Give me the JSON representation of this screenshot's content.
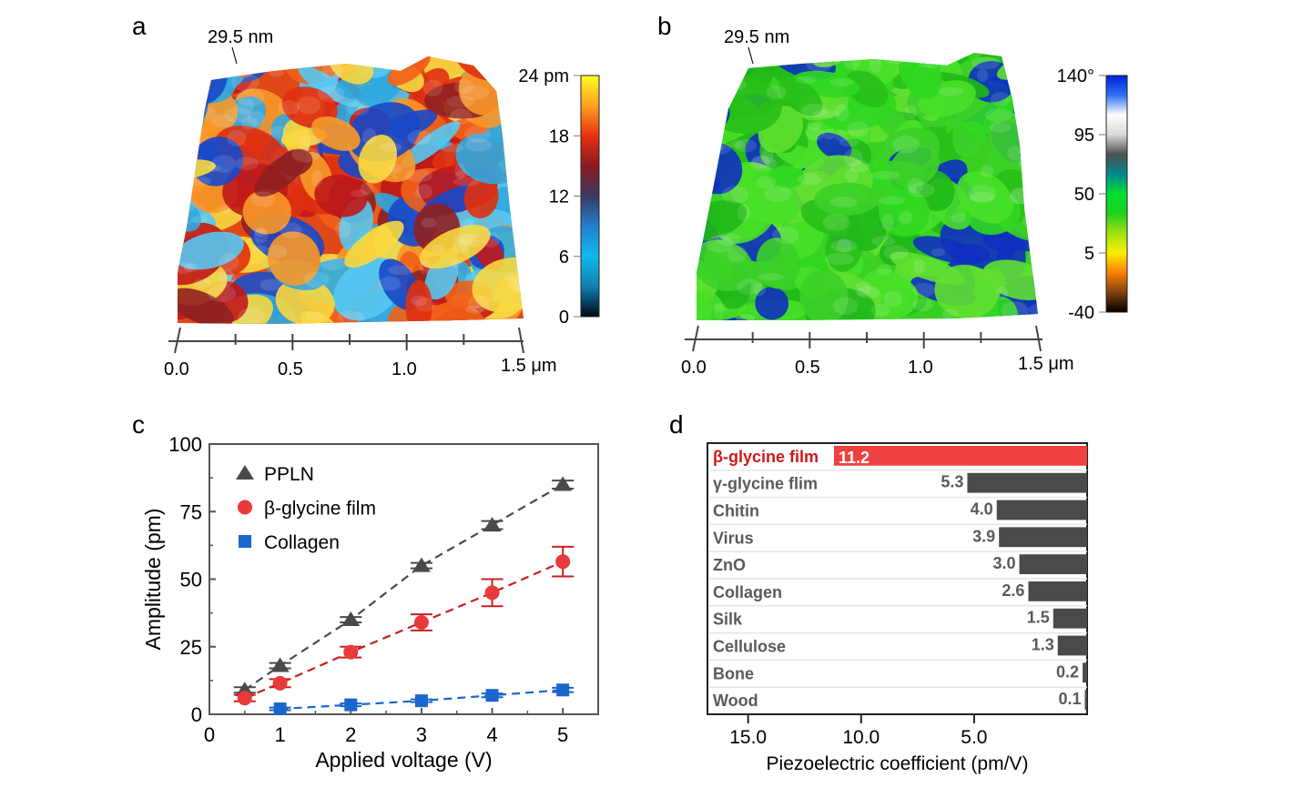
{
  "panels": {
    "a": {
      "letter": "a",
      "height_label": "29.5 nm",
      "colorbar": {
        "ticks": [
          "24 pm",
          "18",
          "12",
          "6",
          "0"
        ],
        "stops": [
          "#ffff20",
          "#ffa020",
          "#e83010",
          "#8a1a20",
          "#3a3a60",
          "#2080d0",
          "#10b8f0",
          "#1080b0",
          "#000818"
        ]
      },
      "surface_palette": [
        "#e03010",
        "#f06018",
        "#f89828",
        "#f8d840",
        "#c01818",
        "#30a8e0",
        "#58c8f0",
        "#1848c8",
        "#902020"
      ],
      "x_ticks": [
        "0.0",
        "0.5",
        "1.0",
        "1.5 μm"
      ]
    },
    "b": {
      "letter": "b",
      "height_label": "29.5 nm",
      "colorbar": {
        "ticks": [
          "140°",
          "95",
          "50",
          "5",
          "-40"
        ],
        "stops": [
          "#0020e0",
          "#3070f0",
          "#ffffff",
          "#d8d8d8",
          "#505050",
          "#008890",
          "#00e030",
          "#20d020",
          "#a0e010",
          "#f8f000",
          "#f88000",
          "#804010",
          "#000000"
        ]
      },
      "surface_palette": [
        "#30d820",
        "#48e028",
        "#28c018",
        "#60e030",
        "#20b818",
        "#3cd028",
        "#1030c0"
      ],
      "x_ticks": [
        "0.0",
        "0.5",
        "1.0",
        "1.5 μm"
      ]
    },
    "c": {
      "letter": "c"
    },
    "d": {
      "letter": "d"
    }
  },
  "chart_data": [
    {
      "panel": "c",
      "type": "scatter",
      "xlabel": "Applied voltage (V)",
      "ylabel": "Amplitude (pm)",
      "xlim": [
        0,
        5.5
      ],
      "ylim": [
        0,
        100
      ],
      "x_ticks": [
        "0",
        "1",
        "2",
        "3",
        "4",
        "5"
      ],
      "y_ticks": [
        "0",
        "25",
        "50",
        "75",
        "100"
      ],
      "legend_position": "top-left",
      "series": [
        {
          "name": "PPLN",
          "marker": "triangle",
          "color": "#4a4a4a",
          "x": [
            0.5,
            1,
            2,
            3,
            4,
            5
          ],
          "y": [
            9,
            18,
            35,
            55,
            70,
            85
          ],
          "err": [
            1,
            1,
            1,
            1,
            1.5,
            1.5
          ]
        },
        {
          "name": "β-glycine film",
          "marker": "circle",
          "color": "#e83a3a",
          "err_color": "#c82020",
          "x": [
            0.5,
            1,
            2,
            3,
            4,
            5
          ],
          "y": [
            6,
            11.5,
            23,
            34,
            45,
            56.5
          ],
          "err": [
            1.2,
            1.5,
            2,
            3,
            5,
            5.5
          ]
        },
        {
          "name": "Collagen",
          "marker": "square",
          "color": "#1a66cc",
          "x": [
            1,
            2,
            3,
            4,
            5
          ],
          "y": [
            2,
            3.5,
            5,
            7,
            9
          ],
          "err": [
            0.5,
            0.5,
            0.5,
            0.7,
            0.8
          ]
        }
      ]
    },
    {
      "panel": "d",
      "type": "bar",
      "orientation": "horizontal",
      "xlabel": "Piezoelectric coefficient (pm/V)",
      "x_reversed": true,
      "xlim": [
        0,
        16.8
      ],
      "x_ticks": [
        "15.0",
        "10.0",
        "5.0"
      ],
      "categories": [
        "β-glycine film",
        "γ-glycine flim",
        "Chitin",
        "Virus",
        "ZnO",
        "Collagen",
        "Silk",
        "Cellulose",
        "Bone",
        "Wood"
      ],
      "values": [
        11.2,
        5.3,
        4.0,
        3.9,
        3.0,
        2.6,
        1.5,
        1.3,
        0.2,
        0.1
      ],
      "value_labels": [
        "11.2",
        "5.3",
        "4.0",
        "3.9",
        "3.0",
        "2.6",
        "1.5",
        "1.3",
        "0.2",
        "0.1"
      ],
      "highlight_color": "#f04040",
      "bar_color": "#4a4a4a"
    }
  ]
}
